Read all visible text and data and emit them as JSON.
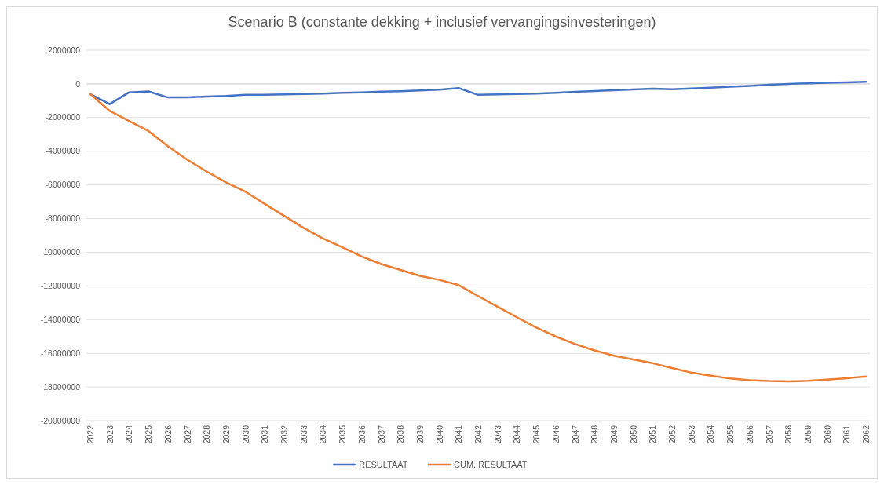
{
  "chart_data": {
    "type": "line",
    "title": "Scenario B (constante dekking + inclusief vervangingsinvesteringen)",
    "categories": [
      "2022",
      "2023",
      "2024",
      "2025",
      "2026",
      "2027",
      "2028",
      "2029",
      "2030",
      "2031",
      "2032",
      "2033",
      "2034",
      "2035",
      "2036",
      "2037",
      "2038",
      "2039",
      "2040",
      "2041",
      "2042",
      "2043",
      "2044",
      "2045",
      "2046",
      "2047",
      "2048",
      "2049",
      "2050",
      "2051",
      "2052",
      "2053",
      "2054",
      "2055",
      "2056",
      "2057",
      "2058",
      "2059",
      "2060",
      "2061",
      "2062"
    ],
    "series": [
      {
        "name": "RESULTAAT",
        "color": "#4472c4",
        "values": [
          -600000,
          -1200000,
          -500000,
          -450000,
          -800000,
          -800000,
          -750000,
          -720000,
          -650000,
          -650000,
          -620000,
          -600000,
          -570000,
          -530000,
          -500000,
          -460000,
          -430000,
          -390000,
          -340000,
          -250000,
          -650000,
          -620000,
          -600000,
          -570000,
          -530000,
          -470000,
          -420000,
          -380000,
          -330000,
          -280000,
          -320000,
          -270000,
          -220000,
          -170000,
          -120000,
          -50000,
          0,
          30000,
          60000,
          90000,
          120000
        ]
      },
      {
        "name": "CUM. RESULTAAT",
        "color": "#ed7d31",
        "values": [
          -600000,
          -1600000,
          -2200000,
          -2800000,
          -3700000,
          -4500000,
          -5200000,
          -5850000,
          -6400000,
          -7130000,
          -7840000,
          -8550000,
          -9180000,
          -9710000,
          -10250000,
          -10700000,
          -11050000,
          -11400000,
          -11640000,
          -11950000,
          -12600000,
          -13240000,
          -13860000,
          -14470000,
          -15000000,
          -15450000,
          -15830000,
          -16140000,
          -16360000,
          -16590000,
          -16880000,
          -17150000,
          -17330000,
          -17500000,
          -17600000,
          -17650000,
          -17670000,
          -17640000,
          -17560000,
          -17480000,
          -17380000
        ]
      }
    ],
    "ylim": [
      -20000000,
      2000000
    ],
    "yticks": [
      -20000000,
      -18000000,
      -16000000,
      -14000000,
      -12000000,
      -10000000,
      -8000000,
      -6000000,
      -4000000,
      -2000000,
      0,
      2000000
    ],
    "grid": "y",
    "legend": "bottom",
    "marker": "none",
    "line_style": "solid"
  }
}
